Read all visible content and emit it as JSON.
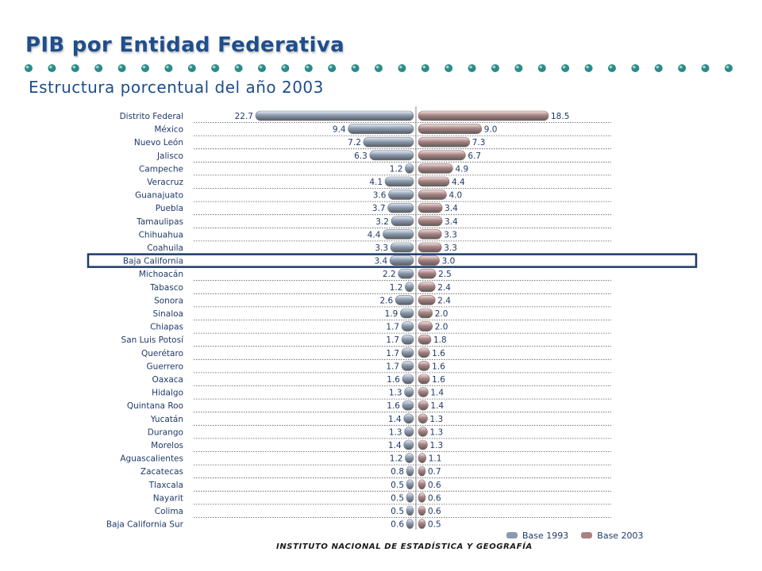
{
  "header": {
    "title": "PIB por Entidad Federativa",
    "subtitle": "Estructura porcentual del año 2003"
  },
  "colors": {
    "title": "#1f4e8c",
    "dots": "#2a8c8a",
    "series_1993": "#8a9ab0",
    "series_2003": "#a98282",
    "highlight_box": "#1f3a68",
    "grid": "#555555"
  },
  "legend": {
    "label_1993": "Base 1993",
    "label_2003": "Base 2003"
  },
  "footer": {
    "text": "INSTITUTO NACIONAL DE ESTADÍSTICA Y GEOGRAFÍA"
  },
  "chart_data": {
    "type": "bar",
    "orientation": "horizontal-diverging",
    "title": "Estructura porcentual del año 2003",
    "highlighted_category": "Baja California",
    "categories": [
      "Distrito Federal",
      "México",
      "Nuevo León",
      "Jalisco",
      "Campeche",
      "Veracruz",
      "Guanajuato",
      "Puebla",
      "Tamaulipas",
      "Chihuahua",
      "Coahuila",
      "Baja California",
      "Michoacán",
      "Tabasco",
      "Sonora",
      "Sinaloa",
      "Chiapas",
      "San Luis Potosí",
      "Querétaro",
      "Guerrero",
      "Oaxaca",
      "Hidalgo",
      "Quintana Roo",
      "Yucatán",
      "Durango",
      "Morelos",
      "Aguascalientes",
      "Zacatecas",
      "Tlaxcala",
      "Nayarit",
      "Colima",
      "Baja California Sur"
    ],
    "series": [
      {
        "name": "Base 1993",
        "side": "left",
        "values": [
          22.7,
          9.4,
          7.2,
          6.3,
          1.2,
          4.1,
          3.6,
          3.7,
          3.2,
          4.4,
          3.3,
          3.4,
          2.2,
          1.2,
          2.6,
          1.9,
          1.7,
          1.7,
          1.7,
          1.7,
          1.6,
          1.3,
          1.6,
          1.4,
          1.3,
          1.4,
          1.2,
          0.8,
          0.5,
          0.5,
          0.5,
          0.6
        ],
        "labels": [
          "22.7",
          "9.4",
          "7.2",
          "6.3",
          "1.2",
          "4.1",
          "3.6",
          "3.7",
          "3.2",
          "4.4",
          "3.3",
          "3.4",
          "2.2",
          "1.2",
          "2.6",
          "1.9",
          "1.7",
          "1.7",
          "1.7",
          "1.7",
          "1.6",
          "1.3",
          "1.6",
          "1.4",
          "1.3",
          "1.4",
          "1.2",
          "0.8",
          "0.5",
          "0.5",
          "0.5",
          "0.6"
        ]
      },
      {
        "name": "Base 2003",
        "side": "right",
        "values": [
          18.5,
          9.0,
          7.3,
          6.7,
          4.9,
          4.4,
          4.0,
          3.4,
          3.4,
          3.3,
          3.3,
          3.0,
          2.5,
          2.4,
          2.4,
          2.0,
          2.0,
          1.8,
          1.6,
          1.6,
          1.6,
          1.4,
          1.4,
          1.3,
          1.3,
          1.3,
          1.1,
          0.7,
          0.6,
          0.6,
          0.6,
          0.5
        ],
        "labels": [
          "18.5",
          "9.0",
          "7.3",
          "6.7",
          "4.9",
          "4.4",
          "4.0",
          "3.4",
          "3.4",
          "3.3",
          "3.3",
          "3.0",
          "2.5",
          "2.4",
          "2.4",
          "2.0",
          "2.0",
          "1.8",
          "1.6",
          "1.6",
          "1.6",
          "1.4",
          "1.4",
          "1.3",
          "1.3",
          "1.3",
          "1.1",
          "0.7",
          "0.6",
          "0.6",
          "0.6",
          "0.5"
        ]
      }
    ],
    "grid": true,
    "legend_position": "bottom-right"
  }
}
